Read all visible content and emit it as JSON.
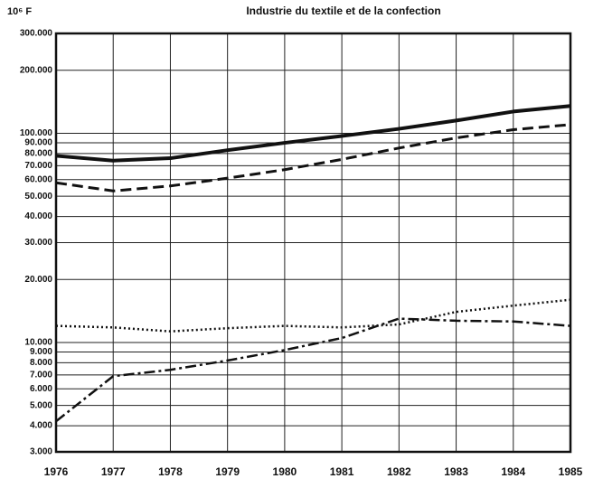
{
  "chart_data": {
    "type": "line",
    "title": "Industrie du textile et de la confection",
    "y_label": "10⁶ F",
    "log_y": true,
    "grid": true,
    "x": [
      1976,
      1977,
      1978,
      1979,
      1980,
      1981,
      1982,
      1983,
      1984,
      1985
    ],
    "xlim": [
      1976,
      1985
    ],
    "xticks": [
      1976,
      1977,
      1978,
      1979,
      1980,
      1981,
      1982,
      1983,
      1984,
      1985
    ],
    "ylim": [
      3000,
      300000
    ],
    "yticks": [
      {
        "value": 3000,
        "label": "3.000"
      },
      {
        "value": 4000,
        "label": "4.000"
      },
      {
        "value": 5000,
        "label": "5.000"
      },
      {
        "value": 6000,
        "label": "6.000"
      },
      {
        "value": 7000,
        "label": "7.000"
      },
      {
        "value": 8000,
        "label": "8.000"
      },
      {
        "value": 9000,
        "label": "9.000"
      },
      {
        "value": 10000,
        "label": "10.000"
      },
      {
        "value": 20000,
        "label": "20.000"
      },
      {
        "value": 30000,
        "label": "30.000"
      },
      {
        "value": 40000,
        "label": "40.000"
      },
      {
        "value": 50000,
        "label": "50.000"
      },
      {
        "value": 60000,
        "label": "60.000"
      },
      {
        "value": 70000,
        "label": "70.000"
      },
      {
        "value": 80000,
        "label": "80.000"
      },
      {
        "value": 90000,
        "label": "90.000"
      },
      {
        "value": 100000,
        "label": "100.000"
      },
      {
        "value": 200000,
        "label": "200.000"
      },
      {
        "value": 300000,
        "label": "300.000"
      }
    ],
    "series": [
      {
        "color": "#111111",
        "style": "solid",
        "values": [
          78000,
          74000,
          76000,
          83000,
          90000,
          97000,
          105000,
          115000,
          127000,
          135000
        ]
      },
      {
        "color": "#111111",
        "style": "dashed",
        "values": [
          58000,
          53000,
          56000,
          61000,
          67000,
          75000,
          85000,
          95000,
          104000,
          110000
        ]
      },
      {
        "color": "#111111",
        "style": "dotted",
        "values": [
          12000,
          11800,
          11300,
          11700,
          12000,
          11800,
          12200,
          14000,
          15000,
          16000
        ]
      },
      {
        "color": "#111111",
        "style": "dashdot",
        "values": [
          4200,
          6900,
          7400,
          8200,
          9200,
          10500,
          13000,
          12700,
          12600,
          12000
        ]
      }
    ]
  }
}
